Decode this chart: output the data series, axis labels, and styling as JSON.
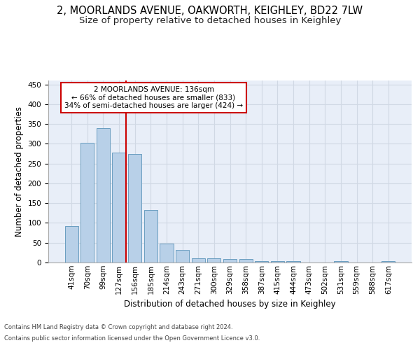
{
  "title1": "2, MOORLANDS AVENUE, OAKWORTH, KEIGHLEY, BD22 7LW",
  "title2": "Size of property relative to detached houses in Keighley",
  "xlabel": "Distribution of detached houses by size in Keighley",
  "ylabel": "Number of detached properties",
  "categories": [
    "41sqm",
    "70sqm",
    "99sqm",
    "127sqm",
    "156sqm",
    "185sqm",
    "214sqm",
    "243sqm",
    "271sqm",
    "300sqm",
    "329sqm",
    "358sqm",
    "387sqm",
    "415sqm",
    "444sqm",
    "473sqm",
    "502sqm",
    "531sqm",
    "559sqm",
    "588sqm",
    "617sqm"
  ],
  "values": [
    92,
    303,
    340,
    278,
    275,
    133,
    47,
    31,
    10,
    10,
    8,
    8,
    4,
    4,
    4,
    0,
    0,
    3,
    0,
    0,
    3
  ],
  "bar_color": "#b8d0e8",
  "bar_edge_color": "#6a9ec0",
  "vline_color": "#cc0000",
  "annotation_text": "2 MOORLANDS AVENUE: 136sqm\n← 66% of detached houses are smaller (833)\n34% of semi-detached houses are larger (424) →",
  "annotation_box_color": "#ffffff",
  "annotation_box_edge_color": "#cc0000",
  "grid_color": "#d0d8e4",
  "background_color": "#e8eef8",
  "footer1": "Contains HM Land Registry data © Crown copyright and database right 2024.",
  "footer2": "Contains public sector information licensed under the Open Government Licence v3.0.",
  "ylim": [
    0,
    460
  ],
  "yticks": [
    0,
    50,
    100,
    150,
    200,
    250,
    300,
    350,
    400,
    450
  ],
  "title1_fontsize": 10.5,
  "title2_fontsize": 9.5,
  "xlabel_fontsize": 8.5,
  "ylabel_fontsize": 8.5,
  "tick_fontsize": 7.5,
  "annotation_fontsize": 7.5,
  "footer_fontsize": 6.0
}
